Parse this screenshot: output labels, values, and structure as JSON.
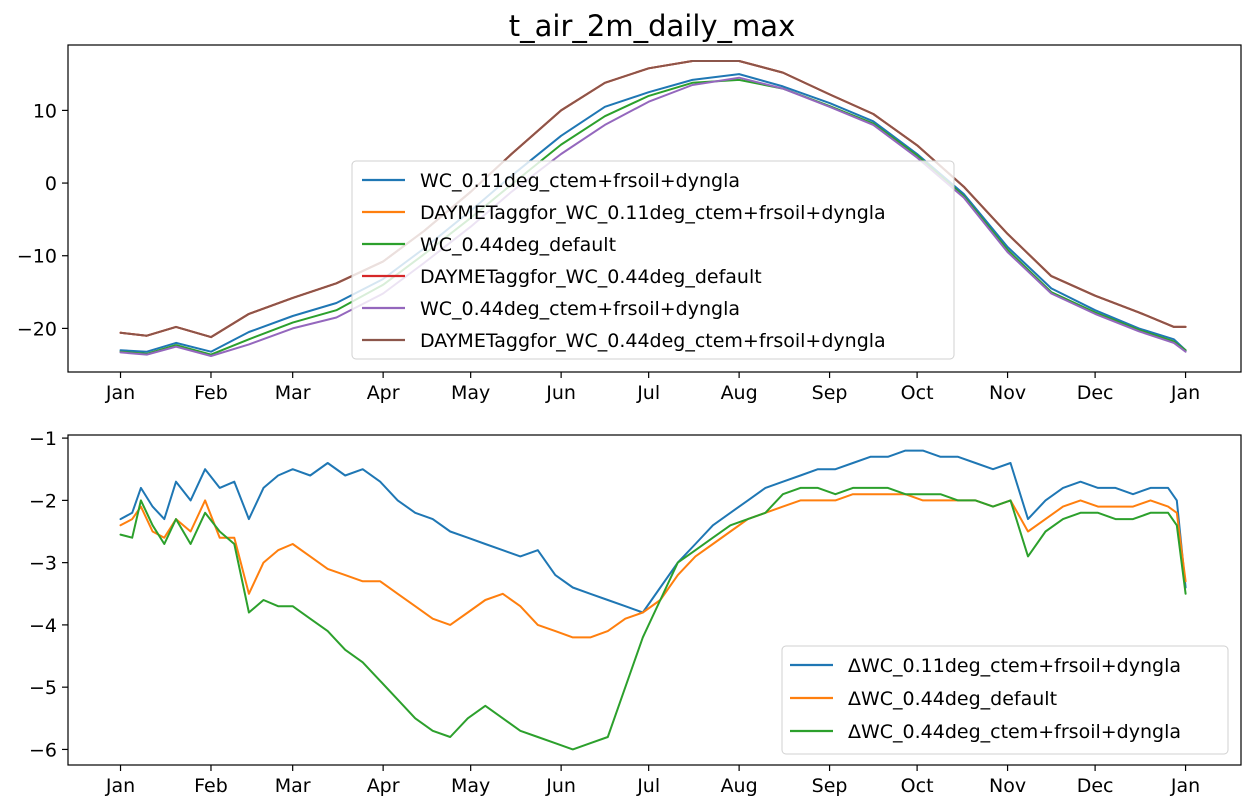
{
  "chart_data": [
    {
      "type": "line",
      "title": "t_air_2m_daily_max",
      "xlabel": "",
      "ylabel": "",
      "x_ticks": [
        "Jan",
        "Feb",
        "Mar",
        "Apr",
        "May",
        "Jun",
        "Jul",
        "Aug",
        "Sep",
        "Oct",
        "Nov",
        "Dec",
        "Jan"
      ],
      "x_tick_days": [
        1,
        32,
        60,
        91,
        121,
        152,
        182,
        213,
        244,
        274,
        305,
        335,
        366
      ],
      "xlim": [
        -17,
        385
      ],
      "ylim": [
        -26,
        19
      ],
      "y_ticks": [
        10,
        0,
        -10,
        -20
      ],
      "y_tick_labels": [
        "10",
        "0",
        "−10",
        "−20"
      ],
      "legend_position": "center",
      "legend_loc": "lower center",
      "x_days": [
        1,
        10,
        20,
        32,
        45,
        60,
        75,
        91,
        105,
        121,
        135,
        152,
        167,
        182,
        197,
        213,
        228,
        244,
        259,
        274,
        290,
        305,
        320,
        335,
        350,
        362,
        366
      ],
      "series": [
        {
          "name": "WC_0.11deg_ctem+frsoil+dyngla",
          "color": "#1f77b4",
          "values": [
            -23,
            -23.2,
            -22,
            -23.2,
            -20.5,
            -18.3,
            -16.5,
            -13.2,
            -9.0,
            -3.8,
            1.0,
            6.5,
            10.5,
            12.5,
            14.2,
            15.0,
            13.3,
            11.0,
            8.5,
            4.0,
            -1.5,
            -8.8,
            -14.5,
            -17.5,
            -20.0,
            -21.5,
            -23.0
          ]
        },
        {
          "name": "DAYMETaggfor_WC_0.11deg_ctem+frsoil+dyngla",
          "color": "#ff7f0e",
          "values": [
            -20.6,
            -21,
            -19.8,
            -21.2,
            -18.0,
            -15.8,
            -13.8,
            -10.8,
            -6.6,
            -1.2,
            4.0,
            10.0,
            13.8,
            15.8,
            16.8,
            16.8,
            15.2,
            12.2,
            9.5,
            5.2,
            -0.5,
            -7.0,
            -12.8,
            -15.5,
            -17.8,
            -19.8,
            -19.8
          ]
        },
        {
          "name": "WC_0.44deg_default",
          "color": "#2ca02c",
          "values": [
            -23.2,
            -23.5,
            -22.3,
            -23.6,
            -21.5,
            -19.2,
            -17.5,
            -14.0,
            -9.8,
            -4.8,
            -0.2,
            5.3,
            9.2,
            12.0,
            13.8,
            14.2,
            13.0,
            10.6,
            8.2,
            3.8,
            -1.8,
            -9.2,
            -15.0,
            -17.8,
            -20.2,
            -21.8,
            -23.0
          ]
        },
        {
          "name": "DAYMETaggfor_WC_0.44deg_default",
          "color": "#d62728",
          "values": [
            -20.6,
            -21,
            -19.8,
            -21.2,
            -18.0,
            -15.8,
            -13.8,
            -10.8,
            -6.6,
            -1.2,
            4.0,
            10.0,
            13.8,
            15.8,
            16.8,
            16.8,
            15.2,
            12.2,
            9.5,
            5.2,
            -0.5,
            -7.0,
            -12.8,
            -15.5,
            -17.8,
            -19.8,
            -19.8
          ]
        },
        {
          "name": "WC_0.44deg_ctem+frsoil+dyngla",
          "color": "#9467bd",
          "values": [
            -23.3,
            -23.6,
            -22.5,
            -23.8,
            -22.2,
            -20.0,
            -18.5,
            -15.2,
            -11.0,
            -6.0,
            -1.2,
            4.0,
            8.0,
            11.2,
            13.5,
            14.5,
            13.0,
            10.5,
            8.0,
            3.5,
            -2.0,
            -9.5,
            -15.2,
            -18.0,
            -20.4,
            -22.0,
            -23.2
          ]
        },
        {
          "name": "DAYMETaggfor_WC_0.44deg_ctem+frsoil+dyngla",
          "color": "#8c564b",
          "values": [
            -20.6,
            -21,
            -19.8,
            -21.2,
            -18.0,
            -15.8,
            -13.8,
            -10.8,
            -6.6,
            -1.2,
            4.0,
            10.0,
            13.8,
            15.8,
            16.8,
            16.8,
            15.2,
            12.2,
            9.5,
            5.2,
            -0.5,
            -7.0,
            -12.8,
            -15.5,
            -17.8,
            -19.8,
            -19.8
          ]
        }
      ]
    },
    {
      "type": "line",
      "title": "",
      "xlabel": "",
      "ylabel": "",
      "x_ticks": [
        "Jan",
        "Feb",
        "Mar",
        "Apr",
        "May",
        "Jun",
        "Jul",
        "Aug",
        "Sep",
        "Oct",
        "Nov",
        "Dec",
        "Jan"
      ],
      "x_tick_days": [
        1,
        32,
        60,
        91,
        121,
        152,
        182,
        213,
        244,
        274,
        305,
        335,
        366
      ],
      "xlim": [
        -17,
        385
      ],
      "ylim": [
        -6.25,
        -0.95
      ],
      "y_ticks": [
        -1,
        -2,
        -3,
        -4,
        -5,
        -6
      ],
      "y_tick_labels": [
        "−1",
        "−2",
        "−3",
        "−4",
        "−5",
        "−6"
      ],
      "legend_position": "lower right",
      "legend_loc": "lower right",
      "x_days": [
        1,
        5,
        8,
        12,
        16,
        20,
        25,
        30,
        35,
        40,
        45,
        50,
        55,
        60,
        66,
        72,
        78,
        84,
        90,
        96,
        102,
        108,
        114,
        120,
        126,
        132,
        138,
        144,
        150,
        156,
        162,
        168,
        174,
        180,
        186,
        192,
        198,
        204,
        210,
        216,
        222,
        228,
        234,
        240,
        246,
        252,
        258,
        264,
        270,
        276,
        282,
        288,
        294,
        300,
        306,
        312,
        318,
        324,
        330,
        336,
        342,
        348,
        354,
        360,
        363,
        366
      ],
      "series": [
        {
          "name": "ΔWC_0.11deg_ctem+frsoil+dyngla",
          "color": "#1f77b4",
          "values": [
            -2.3,
            -2.2,
            -1.8,
            -2.1,
            -2.3,
            -1.7,
            -2.0,
            -1.5,
            -1.8,
            -1.7,
            -2.3,
            -1.8,
            -1.6,
            -1.5,
            -1.6,
            -1.4,
            -1.6,
            -1.5,
            -1.7,
            -2.0,
            -2.2,
            -2.3,
            -2.5,
            -2.6,
            -2.7,
            -2.8,
            -2.9,
            -2.8,
            -3.2,
            -3.4,
            -3.5,
            -3.6,
            -3.7,
            -3.8,
            -3.4,
            -3.0,
            -2.7,
            -2.4,
            -2.2,
            -2.0,
            -1.8,
            -1.7,
            -1.6,
            -1.5,
            -1.5,
            -1.4,
            -1.3,
            -1.3,
            -1.2,
            -1.2,
            -1.3,
            -1.3,
            -1.4,
            -1.5,
            -1.4,
            -2.3,
            -2.0,
            -1.8,
            -1.7,
            -1.8,
            -1.8,
            -1.9,
            -1.8,
            -1.8,
            -2.0,
            -3.4
          ]
        },
        {
          "name": "ΔWC_0.44deg_default",
          "color": "#ff7f0e",
          "values": [
            -2.4,
            -2.3,
            -2.1,
            -2.5,
            -2.6,
            -2.3,
            -2.5,
            -2.0,
            -2.6,
            -2.6,
            -3.5,
            -3.0,
            -2.8,
            -2.7,
            -2.9,
            -3.1,
            -3.2,
            -3.3,
            -3.3,
            -3.5,
            -3.7,
            -3.9,
            -4.0,
            -3.8,
            -3.6,
            -3.5,
            -3.7,
            -4.0,
            -4.1,
            -4.2,
            -4.2,
            -4.1,
            -3.9,
            -3.8,
            -3.6,
            -3.2,
            -2.9,
            -2.7,
            -2.5,
            -2.3,
            -2.2,
            -2.1,
            -2.0,
            -2.0,
            -2.0,
            -1.9,
            -1.9,
            -1.9,
            -1.9,
            -2.0,
            -2.0,
            -2.0,
            -2.0,
            -2.1,
            -2.0,
            -2.5,
            -2.3,
            -2.1,
            -2.0,
            -2.1,
            -2.1,
            -2.1,
            -2.0,
            -2.1,
            -2.2,
            -3.3
          ]
        },
        {
          "name": "ΔWC_0.44deg_ctem+frsoil+dyngla",
          "color": "#2ca02c",
          "values": [
            -2.55,
            -2.6,
            -2.0,
            -2.4,
            -2.7,
            -2.3,
            -2.7,
            -2.2,
            -2.5,
            -2.7,
            -3.8,
            -3.6,
            -3.7,
            -3.7,
            -3.9,
            -4.1,
            -4.4,
            -4.6,
            -4.9,
            -5.2,
            -5.5,
            -5.7,
            -5.8,
            -5.5,
            -5.3,
            -5.5,
            -5.7,
            -5.8,
            -5.9,
            -6.0,
            -5.9,
            -5.8,
            -5.0,
            -4.2,
            -3.6,
            -3.0,
            -2.8,
            -2.6,
            -2.4,
            -2.3,
            -2.2,
            -1.9,
            -1.8,
            -1.8,
            -1.9,
            -1.8,
            -1.8,
            -1.8,
            -1.9,
            -1.9,
            -1.9,
            -2.0,
            -2.0,
            -2.1,
            -2.0,
            -2.9,
            -2.5,
            -2.3,
            -2.2,
            -2.2,
            -2.3,
            -2.3,
            -2.2,
            -2.2,
            -2.4,
            -3.5
          ]
        }
      ]
    }
  ]
}
